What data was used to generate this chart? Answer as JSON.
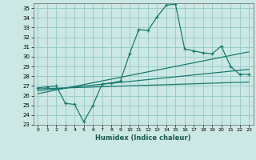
{
  "xlabel": "Humidex (Indice chaleur)",
  "bg_color": "#cce8e4",
  "grid_color": "#99cccc",
  "line_color": "#1a7a6e",
  "xlim": [
    -0.5,
    23.5
  ],
  "ylim": [
    23,
    35.5
  ],
  "xticks": [
    0,
    1,
    2,
    3,
    4,
    5,
    6,
    7,
    8,
    9,
    10,
    11,
    12,
    13,
    14,
    15,
    16,
    17,
    18,
    19,
    20,
    21,
    22,
    23
  ],
  "yticks": [
    23,
    24,
    25,
    26,
    27,
    28,
    29,
    30,
    31,
    32,
    33,
    34,
    35
  ],
  "series1_x": [
    0,
    1,
    2,
    3,
    4,
    5,
    6,
    7,
    8,
    9,
    10,
    11,
    12,
    13,
    14,
    15,
    16,
    17,
    18,
    19,
    20,
    21,
    22,
    23
  ],
  "series1_y": [
    26.8,
    26.9,
    27.0,
    25.2,
    25.1,
    23.3,
    25.0,
    27.2,
    27.3,
    27.5,
    30.3,
    32.8,
    32.7,
    34.1,
    35.3,
    35.4,
    30.8,
    30.6,
    30.4,
    30.3,
    31.1,
    29.0,
    28.2,
    28.2
  ],
  "trend1_x": [
    0,
    23
  ],
  "trend1_y": [
    26.7,
    27.4
  ],
  "trend2_x": [
    0,
    23
  ],
  "trend2_y": [
    26.5,
    28.7
  ],
  "trend3_x": [
    0,
    23
  ],
  "trend3_y": [
    26.2,
    30.5
  ]
}
